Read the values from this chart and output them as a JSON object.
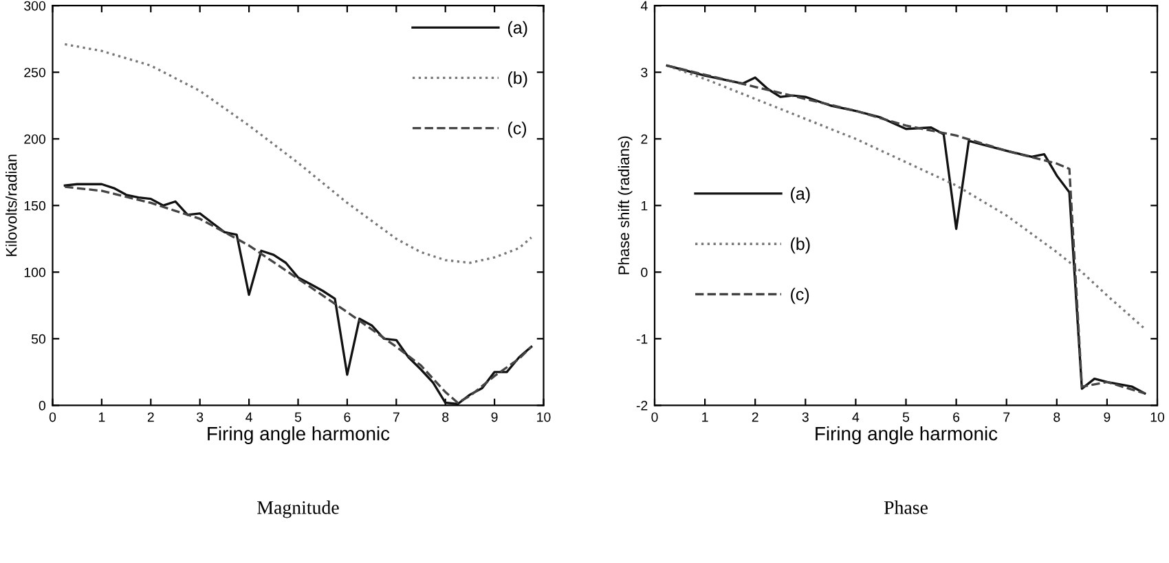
{
  "chart_data": [
    {
      "type": "line",
      "title": "Magnitude",
      "xlabel": "Firing angle harmonic",
      "ylabel": "Kilovolts/radian",
      "xlim": [
        0,
        10
      ],
      "ylim": [
        0,
        300
      ],
      "xticks": [
        0,
        1,
        2,
        3,
        4,
        5,
        6,
        7,
        8,
        9,
        10
      ],
      "yticks": [
        0,
        50,
        100,
        150,
        200,
        250,
        300
      ],
      "grid": false,
      "legend": "top right",
      "marker": "none",
      "series": [
        {
          "name": "(a)",
          "color": "#111111",
          "line_style": "solid",
          "x": [
            0.25,
            0.5,
            0.75,
            1,
            1.25,
            1.5,
            1.75,
            2,
            2.25,
            2.5,
            2.75,
            3,
            3.25,
            3.5,
            3.75,
            4,
            4.25,
            4.5,
            4.75,
            5,
            5.25,
            5.5,
            5.75,
            6,
            6.25,
            6.5,
            6.75,
            7,
            7.25,
            7.5,
            7.75,
            8,
            8.25,
            8.5,
            8.75,
            9,
            9.25,
            9.5,
            9.75
          ],
          "values": [
            165,
            166,
            166,
            166,
            163,
            158,
            156,
            155,
            150,
            153,
            143,
            144,
            137,
            130,
            128,
            83,
            116,
            113,
            107,
            96,
            91,
            86,
            80,
            23,
            65,
            60,
            50,
            49,
            36,
            27,
            17,
            2,
            1,
            8,
            13,
            25,
            25,
            36,
            44
          ]
        },
        {
          "name": "(b)",
          "color": "#777777",
          "line_style": "dotted",
          "x": [
            0.25,
            1,
            2,
            3,
            4,
            5,
            6,
            7,
            7.5,
            8,
            8.5,
            9,
            9.5,
            9.75
          ],
          "values": [
            271,
            266,
            255,
            236,
            210,
            182,
            152,
            125,
            115,
            109,
            107,
            111,
            118,
            126
          ]
        },
        {
          "name": "(c)",
          "color": "#444444",
          "line_style": "dashed",
          "x": [
            0.25,
            1,
            2,
            3,
            3.75,
            4,
            5,
            6,
            7,
            7.5,
            8,
            8.25,
            8.5,
            9,
            9.5,
            9.75
          ],
          "values": [
            164,
            161,
            152,
            140,
            125,
            120,
            95,
            70,
            44,
            30,
            10,
            2,
            7,
            22,
            35,
            44
          ]
        }
      ]
    },
    {
      "type": "line",
      "title": "Phase",
      "xlabel": "Firing angle harmonic",
      "ylabel": "Phase shift (radians)",
      "xlim": [
        0,
        10
      ],
      "ylim": [
        -2,
        4
      ],
      "xticks": [
        0,
        1,
        2,
        3,
        4,
        5,
        6,
        7,
        8,
        9,
        10
      ],
      "yticks": [
        {
          "value": -2,
          "label": "-2"
        },
        {
          "value": -1,
          "label": "-1"
        },
        0,
        1,
        2,
        3,
        4
      ],
      "grid": false,
      "legend": "left",
      "marker": "none",
      "series": [
        {
          "name": "(a)",
          "color": "#111111",
          "line_style": "solid",
          "x": [
            0.25,
            0.5,
            1,
            1.5,
            1.75,
            2,
            2.25,
            2.5,
            2.75,
            3,
            3.5,
            4,
            4.5,
            5,
            5.5,
            5.75,
            6,
            6.25,
            6.5,
            7,
            7.5,
            7.75,
            8,
            8.25,
            8.5,
            8.75,
            9,
            9.5,
            9.75
          ],
          "values": [
            3.1,
            3.05,
            2.95,
            2.87,
            2.83,
            2.92,
            2.75,
            2.63,
            2.65,
            2.63,
            2.5,
            2.42,
            2.32,
            2.15,
            2.17,
            2.07,
            0.65,
            1.97,
            1.92,
            1.82,
            1.73,
            1.77,
            1.45,
            1.2,
            -1.75,
            -1.6,
            -1.65,
            -1.72,
            -1.82
          ]
        },
        {
          "name": "(b)",
          "color": "#777777",
          "line_style": "dotted",
          "x": [
            0.25,
            1,
            2,
            3,
            4,
            5,
            6,
            7,
            8,
            8.5,
            9,
            9.75
          ],
          "values": [
            3.1,
            2.9,
            2.6,
            2.3,
            2.0,
            1.65,
            1.3,
            0.85,
            0.3,
            0.0,
            -0.35,
            -0.85
          ]
        },
        {
          "name": "(c)",
          "color": "#444444",
          "line_style": "dashed",
          "x": [
            0.25,
            2,
            4,
            5,
            6,
            7,
            8,
            8.25,
            8.5,
            9,
            9.75
          ],
          "values": [
            3.1,
            2.78,
            2.42,
            2.2,
            2.05,
            1.82,
            1.63,
            1.55,
            -1.72,
            -1.65,
            -1.82
          ]
        }
      ]
    }
  ]
}
